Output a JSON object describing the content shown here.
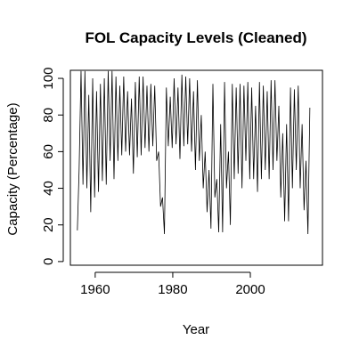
{
  "chart_data": {
    "type": "line",
    "title": "FOL Capacity Levels (Cleaned)",
    "xlabel": "Year",
    "ylabel": "Capacity (Percentage)",
    "color": "#000000",
    "x": [
      1955.4,
      1955.85,
      1956.35,
      1956.85,
      1957.35,
      1957.85,
      1958.35,
      1958.85,
      1959.35,
      1959.85,
      1960.35,
      1960.85,
      1961.35,
      1961.85,
      1962.35,
      1962.85,
      1963.35,
      1963.85,
      1964.35,
      1964.85,
      1965.35,
      1965.85,
      1966.35,
      1966.85,
      1967.35,
      1967.85,
      1968.35,
      1968.85,
      1969.35,
      1969.85,
      1970.35,
      1970.85,
      1971.35,
      1971.85,
      1972.35,
      1972.85,
      1973.35,
      1973.85,
      1974.35,
      1974.85,
      1975.35,
      1975.85,
      1976.35,
      1976.85,
      1977.35,
      1977.85,
      1978.35,
      1978.85,
      1979.35,
      1979.85,
      1980.35,
      1980.85,
      1981.35,
      1981.85,
      1982.35,
      1982.85,
      1983.35,
      1983.85,
      1984.35,
      1984.85,
      1985.35,
      1985.85,
      1986.35,
      1986.85,
      1987.35,
      1987.85,
      1988.35,
      1988.85,
      1989.35,
      1989.85,
      1990.35,
      1990.85,
      1991.35,
      1991.85,
      1992.35,
      1992.85,
      1993.35,
      1993.85,
      1994.35,
      1994.85,
      1995.35,
      1995.85,
      1996.35,
      1996.85,
      1997.35,
      1997.85,
      1998.35,
      1998.85,
      1999.35,
      1999.85,
      2000.35,
      2000.85,
      2001.35,
      2001.85,
      2002.35,
      2002.85,
      2003.35,
      2003.85,
      2004.35,
      2004.85,
      2005.35,
      2005.85,
      2006.35,
      2006.85,
      2007.35,
      2007.85,
      2008.35,
      2008.85,
      2009.35,
      2009.85,
      2010.35,
      2010.85,
      2011.35,
      2011.85,
      2012.35,
      2012.85,
      2013.35,
      2013.85,
      2014.35,
      2014.85,
      2015.35
    ],
    "values": [
      17,
      50,
      104,
      42,
      104,
      40,
      91,
      27,
      100,
      35,
      93,
      38,
      97,
      44,
      100,
      42,
      104,
      55,
      104,
      45,
      101,
      55,
      96,
      58,
      101,
      60,
      93,
      58,
      89,
      48,
      98,
      57,
      101,
      58,
      101,
      62,
      96,
      60,
      97,
      63,
      96,
      55,
      60,
      30,
      35,
      15,
      95,
      63,
      90,
      62,
      100,
      64,
      95,
      56,
      102,
      63,
      101,
      64,
      100,
      60,
      93,
      50,
      99,
      55,
      80,
      40,
      60,
      27,
      50,
      18,
      97,
      35,
      45,
      16,
      75,
      16,
      98,
      40,
      60,
      20,
      97,
      45,
      95,
      48,
      97,
      40,
      96,
      55,
      98,
      45,
      95,
      45,
      85,
      38,
      98,
      45,
      96,
      50,
      93,
      45,
      99,
      50,
      99,
      55,
      85,
      35,
      70,
      22,
      75,
      22,
      95,
      40,
      94,
      50,
      96,
      40,
      75,
      28,
      55,
      15,
      84
    ],
    "xlim": [
      1953.6,
      2018.6
    ],
    "ylim": [
      -2,
      104.4
    ],
    "xticks": [
      1960,
      1980,
      2000
    ],
    "yticks": [
      0,
      20,
      40,
      60,
      80,
      100
    ]
  }
}
